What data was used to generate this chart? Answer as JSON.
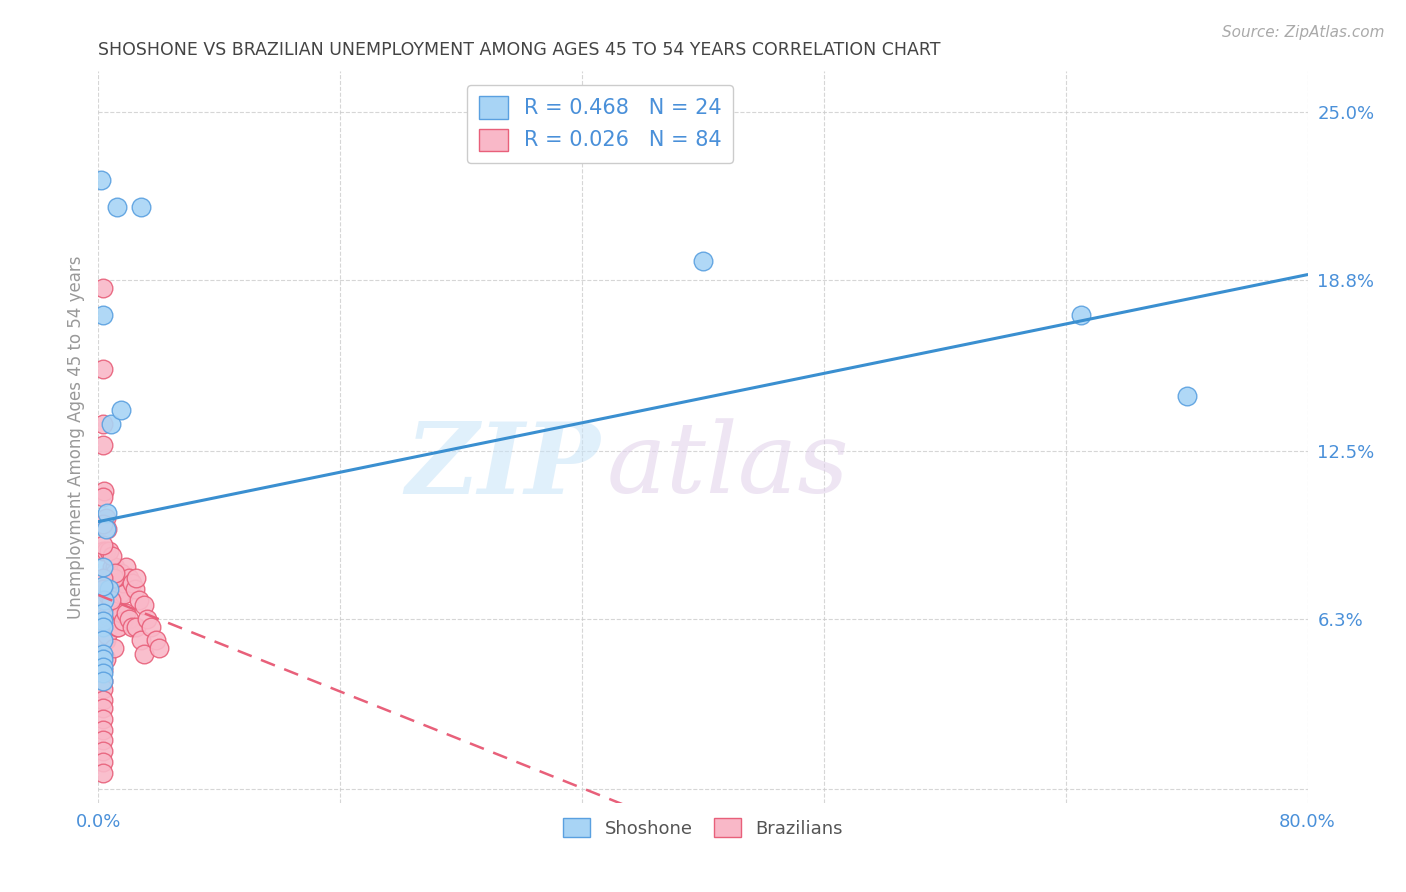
{
  "title": "SHOSHONE VS BRAZILIAN UNEMPLOYMENT AMONG AGES 45 TO 54 YEARS CORRELATION CHART",
  "source": "Source: ZipAtlas.com",
  "ylabel": "Unemployment Among Ages 45 to 54 years",
  "background_color": "#ffffff",
  "grid_color": "#cccccc",
  "shoshone_color": "#a8d4f5",
  "brazilian_color": "#f9b8c8",
  "shoshone_edge_color": "#5aa0e0",
  "brazilian_edge_color": "#e8607a",
  "shoshone_line_color": "#3a8fd0",
  "brazilian_line_color": "#e8607a",
  "title_color": "#444444",
  "axis_label_color": "#4a90d9",
  "tick_label_color": "#4a90d9",
  "ylabel_color": "#999999",
  "R_shoshone": 0.468,
  "N_shoshone": 24,
  "R_brazilian": 0.026,
  "N_brazilian": 84,
  "xmin": 0.0,
  "xmax": 0.8,
  "ymin": -0.005,
  "ymax": 0.265,
  "yticks": [
    0.0,
    0.063,
    0.125,
    0.188,
    0.25
  ],
  "ytick_labels": [
    "",
    "6.3%",
    "12.5%",
    "18.8%",
    "25.0%"
  ],
  "xticks": [
    0.0,
    0.16,
    0.32,
    0.48,
    0.64,
    0.8
  ],
  "xtick_labels": [
    "0.0%",
    "",
    "",
    "",
    "",
    "80.0%"
  ],
  "shoshone_x": [
    0.002,
    0.012,
    0.028,
    0.003,
    0.008,
    0.006,
    0.015,
    0.005,
    0.003,
    0.007,
    0.004,
    0.003,
    0.003,
    0.003,
    0.003,
    0.003,
    0.003,
    0.003,
    0.003,
    0.003,
    0.003,
    0.4,
    0.65,
    0.72
  ],
  "shoshone_y": [
    0.225,
    0.215,
    0.215,
    0.175,
    0.135,
    0.102,
    0.14,
    0.096,
    0.082,
    0.074,
    0.07,
    0.065,
    0.062,
    0.06,
    0.055,
    0.05,
    0.048,
    0.045,
    0.043,
    0.04,
    0.075,
    0.195,
    0.175,
    0.145
  ],
  "brazilian_x": [
    0.003,
    0.003,
    0.003,
    0.003,
    0.003,
    0.003,
    0.003,
    0.003,
    0.003,
    0.003,
    0.003,
    0.003,
    0.003,
    0.004,
    0.005,
    0.005,
    0.005,
    0.005,
    0.005,
    0.006,
    0.006,
    0.006,
    0.007,
    0.008,
    0.008,
    0.009,
    0.009,
    0.01,
    0.01,
    0.01,
    0.011,
    0.012,
    0.012,
    0.013,
    0.013,
    0.014,
    0.015,
    0.015,
    0.016,
    0.016,
    0.017,
    0.018,
    0.018,
    0.02,
    0.02,
    0.022,
    0.022,
    0.024,
    0.025,
    0.025,
    0.027,
    0.028,
    0.03,
    0.03,
    0.032,
    0.035,
    0.038,
    0.04,
    0.003,
    0.003,
    0.003,
    0.004,
    0.005,
    0.005,
    0.006,
    0.007,
    0.008,
    0.008,
    0.009,
    0.01,
    0.011,
    0.003,
    0.003,
    0.003,
    0.003,
    0.003,
    0.003,
    0.003,
    0.003,
    0.003,
    0.003,
    0.003,
    0.003,
    0.003
  ],
  "brazilian_y": [
    0.068,
    0.063,
    0.06,
    0.057,
    0.054,
    0.05,
    0.047,
    0.044,
    0.04,
    0.037,
    0.033,
    0.03,
    0.026,
    0.074,
    0.078,
    0.07,
    0.063,
    0.055,
    0.048,
    0.072,
    0.064,
    0.057,
    0.076,
    0.08,
    0.068,
    0.082,
    0.07,
    0.076,
    0.063,
    0.052,
    0.082,
    0.074,
    0.06,
    0.076,
    0.06,
    0.072,
    0.08,
    0.065,
    0.076,
    0.062,
    0.072,
    0.082,
    0.065,
    0.078,
    0.063,
    0.076,
    0.06,
    0.074,
    0.078,
    0.06,
    0.07,
    0.055,
    0.068,
    0.05,
    0.063,
    0.06,
    0.055,
    0.052,
    0.127,
    0.098,
    0.088,
    0.11,
    0.1,
    0.088,
    0.096,
    0.088,
    0.078,
    0.07,
    0.086,
    0.078,
    0.08,
    0.185,
    0.155,
    0.135,
    0.108,
    0.098,
    0.09,
    0.078,
    0.074,
    0.022,
    0.018,
    0.014,
    0.01,
    0.006
  ]
}
